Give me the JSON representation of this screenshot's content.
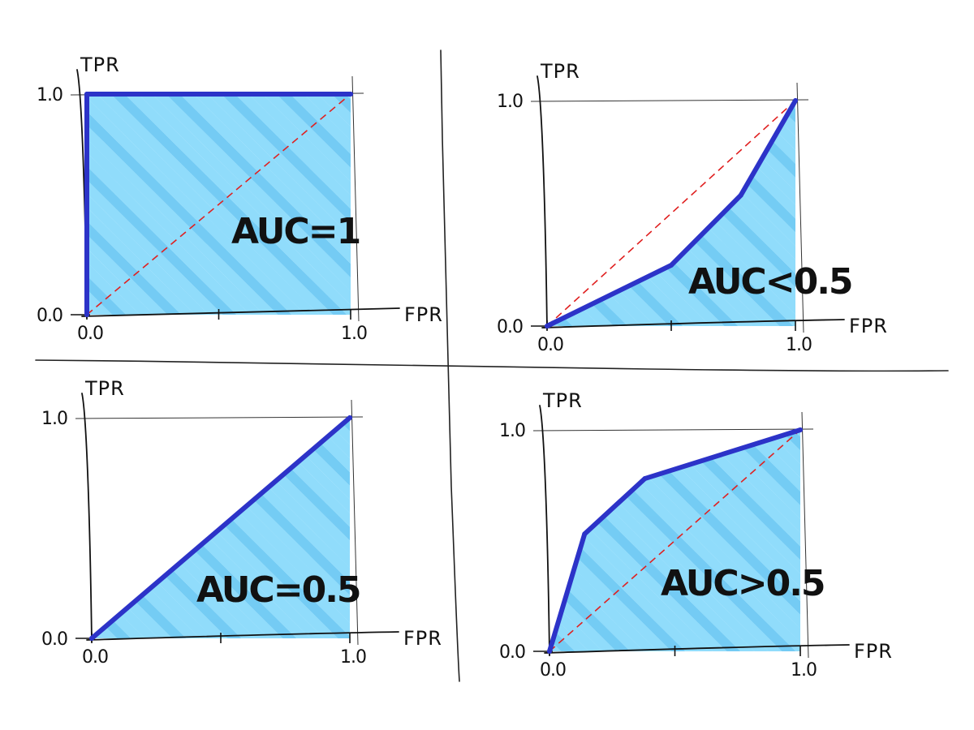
{
  "colors": {
    "fill": "#7dd6fb",
    "fill_dark": "#5cc3f3",
    "roc_line": "#2c33c8",
    "diagonal": "#e02020",
    "ink": "#111111",
    "divider": "#222222",
    "background": "#ffffff"
  },
  "chart_data": [
    {
      "type": "line",
      "xlabel": "FPR",
      "ylabel": "TPR",
      "x_ticks": [
        "0.0",
        "1.0"
      ],
      "y_ticks": [
        "0.0",
        "1.0"
      ],
      "xlim": [
        0,
        1
      ],
      "ylim": [
        0,
        1
      ],
      "annotation": "AUC=1",
      "series": [
        {
          "x": [
            0,
            0,
            1
          ],
          "y": [
            0,
            1,
            1
          ]
        },
        {
          "x": [
            0,
            1
          ],
          "y": [
            0,
            1
          ],
          "style": "dashed"
        }
      ],
      "shaded_area_under_curve": true
    },
    {
      "type": "line",
      "xlabel": "FPR",
      "ylabel": "TPR",
      "x_ticks": [
        "0.0",
        "1.0"
      ],
      "y_ticks": [
        "0.0",
        "1.0"
      ],
      "xlim": [
        0,
        1
      ],
      "ylim": [
        0,
        1
      ],
      "annotation": "AUC<0.5",
      "series": [
        {
          "x": [
            0,
            0.5,
            0.78,
            1
          ],
          "y": [
            0,
            0.27,
            0.58,
            1
          ]
        },
        {
          "x": [
            0,
            1
          ],
          "y": [
            0,
            1
          ],
          "style": "dashed"
        }
      ],
      "shaded_area_under_curve": true
    },
    {
      "type": "line",
      "xlabel": "FPR",
      "ylabel": "TPR",
      "x_ticks": [
        "0.0",
        "1.0"
      ],
      "y_ticks": [
        "0.0",
        "1.0"
      ],
      "xlim": [
        0,
        1
      ],
      "ylim": [
        0,
        1
      ],
      "annotation": "AUC=0.5",
      "series": [
        {
          "x": [
            0,
            1
          ],
          "y": [
            0,
            1
          ]
        },
        {
          "x": [
            0,
            1
          ],
          "y": [
            0,
            1
          ],
          "style": "dashed"
        }
      ],
      "shaded_area_under_curve": true
    },
    {
      "type": "line",
      "xlabel": "FPR",
      "ylabel": "TPR",
      "x_ticks": [
        "0.0",
        "1.0"
      ],
      "y_ticks": [
        "0.0",
        "1.0"
      ],
      "xlim": [
        0,
        1
      ],
      "ylim": [
        0,
        1
      ],
      "annotation": "AUC>0.5",
      "series": [
        {
          "x": [
            0,
            0.14,
            0.38,
            1
          ],
          "y": [
            0,
            0.53,
            0.78,
            1
          ]
        },
        {
          "x": [
            0,
            1
          ],
          "y": [
            0,
            1
          ],
          "style": "dashed"
        }
      ],
      "shaded_area_under_curve": true
    }
  ]
}
